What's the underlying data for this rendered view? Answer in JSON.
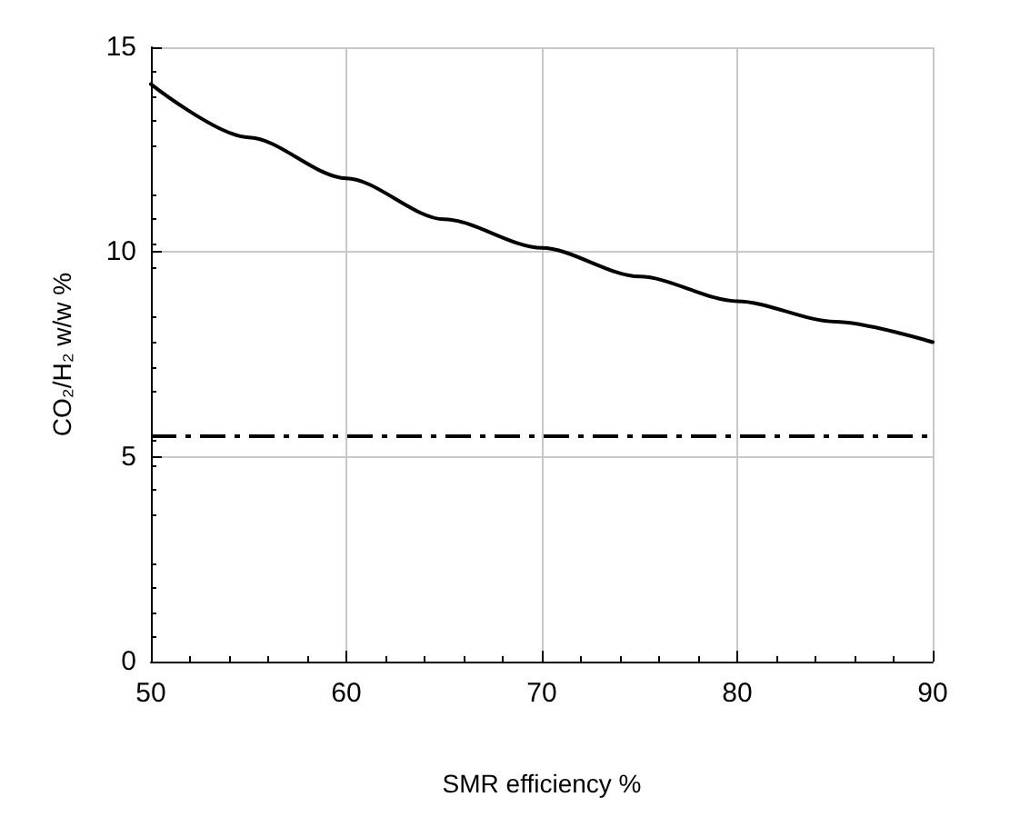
{
  "chart_data": {
    "type": "line",
    "xlabel": "SMR efficiency %",
    "ylabel": "CO₂/H₂ w/w %",
    "x": [
      50,
      55,
      60,
      65,
      70,
      75,
      80,
      85,
      90
    ],
    "series": [
      {
        "color": "#000000",
        "values": [
          14.1,
          12.8,
          11.8,
          10.8,
          10.1,
          9.4,
          8.8,
          8.3,
          7.8
        ]
      }
    ],
    "xlim": [
      50,
      90
    ],
    "xticks": [
      50,
      60,
      70,
      80,
      90
    ],
    "ylim": [
      0,
      15
    ],
    "yticks": [
      0,
      5,
      10,
      15
    ],
    "ref_lines": [
      {
        "axis": "y",
        "value": 5.5,
        "color": "#000000",
        "line_style": "dashed"
      }
    ],
    "grid": true,
    "marker": "none",
    "line_style": "solid"
  }
}
